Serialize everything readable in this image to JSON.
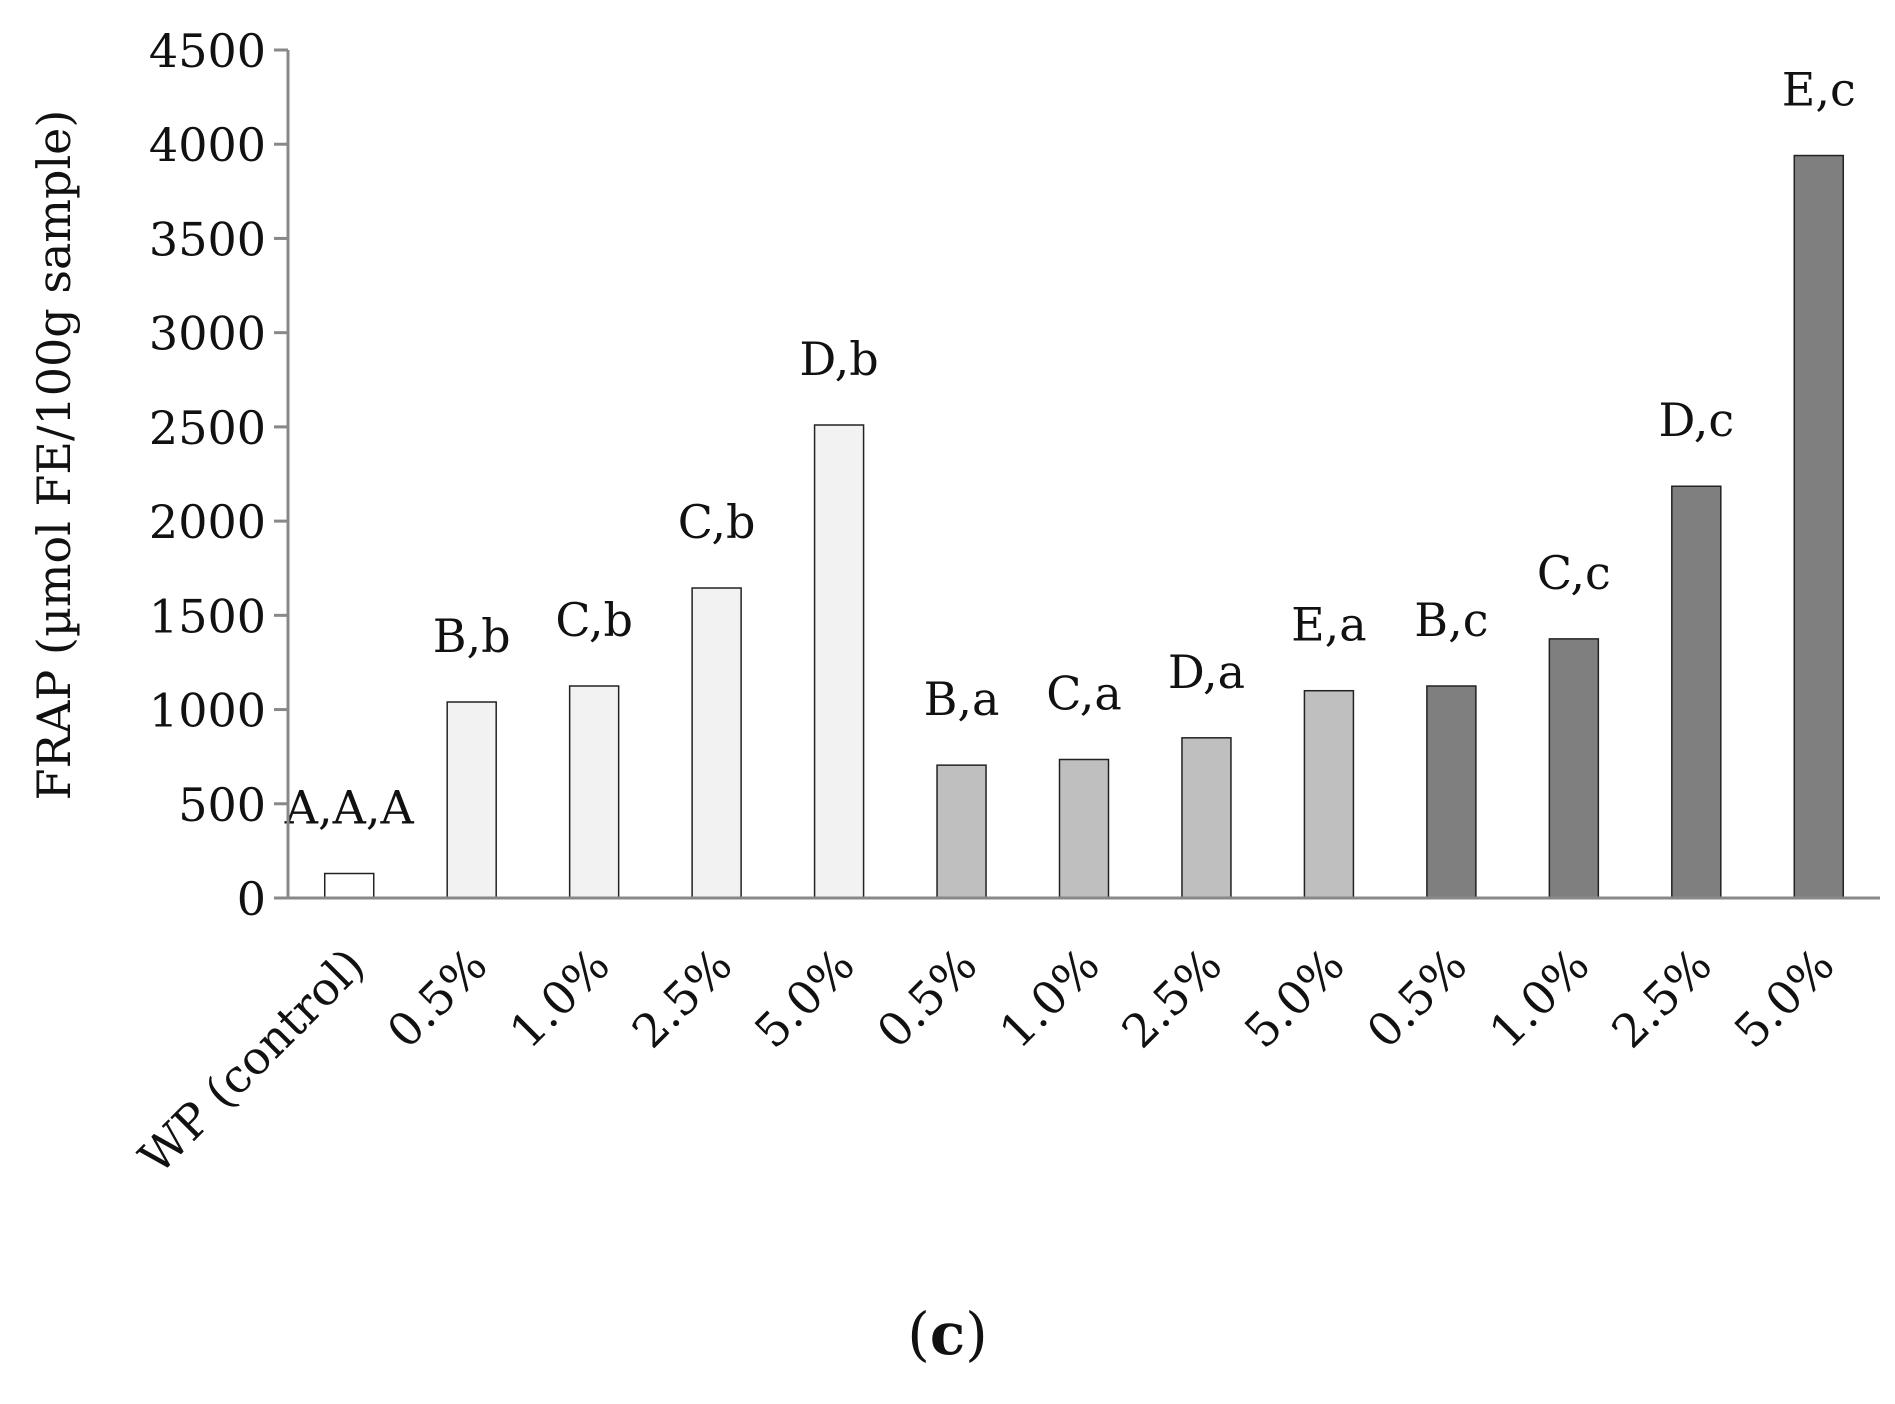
{
  "chart_data": {
    "type": "bar",
    "title": "",
    "xlabel": "",
    "ylabel": "FRAP (µmol FE/100g sample)",
    "ylim": [
      0,
      4500
    ],
    "yticks": [
      0,
      500,
      1000,
      1500,
      2000,
      2500,
      3000,
      3500,
      4000,
      4500
    ],
    "grid": false,
    "legend": "none",
    "categories": [
      "WP (control)",
      "0.5%",
      "1.0%",
      "2.5%",
      "5.0%",
      "0.5%",
      "1.0%",
      "2.5%",
      "5.0%",
      "0.5%",
      "1.0%",
      "2.5%",
      "5.0%"
    ],
    "values": [
      130,
      1040,
      1125,
      1645,
      2510,
      705,
      735,
      850,
      1100,
      1125,
      1375,
      2185,
      3940
    ],
    "bar_labels": [
      "A,A,A",
      "B,b",
      "C,b",
      "C,b",
      "D,b",
      "B,a",
      "C,a",
      "D,a",
      "E,a",
      "B,c",
      "C,c",
      "D,c",
      "E,c"
    ],
    "bar_colors": [
      "#ffffff",
      "#f2f2f2",
      "#f2f2f2",
      "#f2f2f2",
      "#f2f2f2",
      "#bfbfbf",
      "#bfbfbf",
      "#bfbfbf",
      "#bfbfbf",
      "#7f7f7f",
      "#7f7f7f",
      "#7f7f7f",
      "#7f7f7f"
    ]
  },
  "panel_label": {
    "open": "(",
    "letter": "c",
    "close": ")"
  }
}
